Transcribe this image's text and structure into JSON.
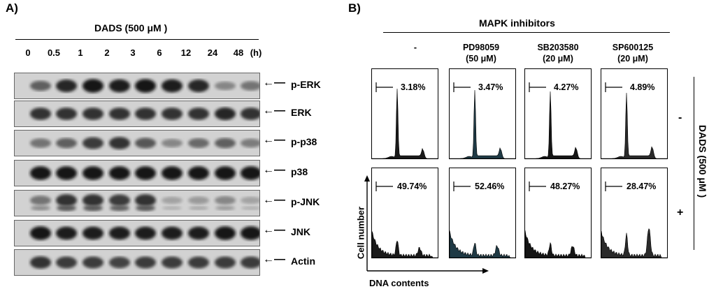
{
  "panel_a": {
    "label": "A)",
    "treatment_title": "DADS (500 μM )",
    "timepoints": [
      "0",
      "0.5",
      "1",
      "2",
      "3",
      "6",
      "12",
      "24",
      "48"
    ],
    "time_unit": "(h)",
    "blots": [
      {
        "label": "p-ERK",
        "intensities": [
          0.55,
          0.85,
          0.95,
          0.9,
          0.95,
          0.9,
          0.85,
          0.35,
          0.45
        ]
      },
      {
        "label": "ERK",
        "intensities": [
          0.8,
          0.8,
          0.8,
          0.8,
          0.8,
          0.8,
          0.8,
          0.85,
          0.8
        ]
      },
      {
        "label": "p-p38",
        "intensities": [
          0.45,
          0.55,
          0.75,
          0.8,
          0.6,
          0.35,
          0.5,
          0.55,
          0.4
        ]
      },
      {
        "label": "p38",
        "intensities": [
          0.95,
          0.95,
          0.95,
          0.95,
          0.95,
          0.95,
          0.95,
          0.95,
          0.95
        ]
      },
      {
        "label": "p-JNK",
        "intensities": [
          0.45,
          0.8,
          0.8,
          0.75,
          0.8,
          0.2,
          0.25,
          0.35,
          0.2
        ]
      },
      {
        "label": "JNK",
        "intensities": [
          0.95,
          0.9,
          0.9,
          0.9,
          0.9,
          0.9,
          0.9,
          0.95,
          0.95
        ]
      },
      {
        "label": "Actin",
        "intensities": [
          0.8,
          0.75,
          0.75,
          0.7,
          0.75,
          0.75,
          0.75,
          0.75,
          0.75
        ]
      }
    ]
  },
  "panel_b": {
    "label": "B)",
    "inhibitors_title": "MAPK inhibitors",
    "conditions": [
      {
        "name": "-",
        "dose": ""
      },
      {
        "name": "PD98059",
        "dose": "(50 μM)"
      },
      {
        "name": "SB203580",
        "dose": "(20 μM)"
      },
      {
        "name": "SP600125",
        "dose": "(20 μM)"
      }
    ],
    "row_labels": [
      "-",
      "+"
    ],
    "side_title": "DADS (500 μM )",
    "percentages_minus": [
      "3.18%",
      "3.47%",
      "4.27%",
      "4.89%"
    ],
    "percentages_plus": [
      "49.74%",
      "52.46%",
      "48.27%",
      "28.47%"
    ],
    "y_axis_label": "Cell number",
    "x_axis_label": "DNA contents",
    "fill_colors": [
      "#1a1a1a",
      "#1f3a45",
      "#151515",
      "#2a2a2a"
    ]
  }
}
